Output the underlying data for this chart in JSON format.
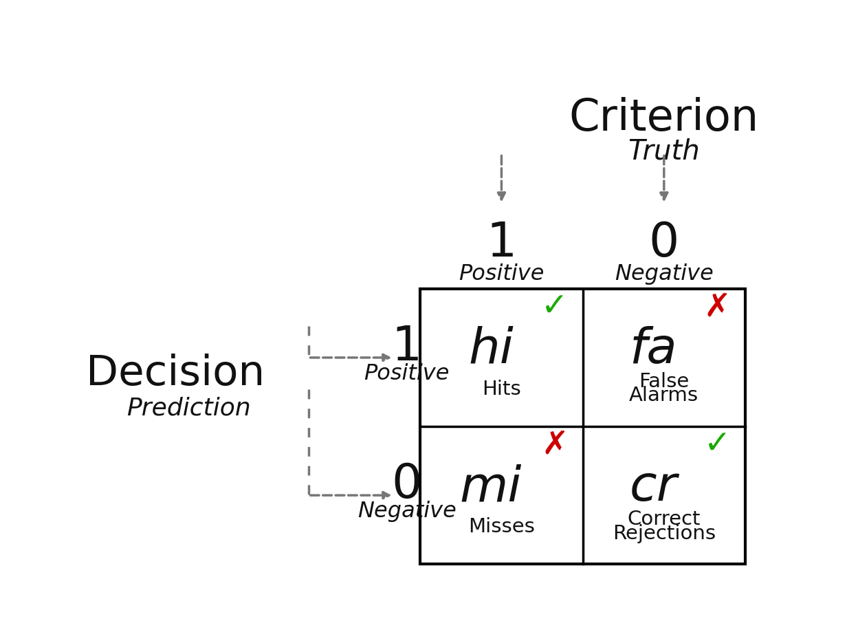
{
  "title": "Criterion",
  "subtitle_truth": "Truth",
  "col_label_1": "1",
  "col_label_0": "0",
  "col_sublabel_1": "Positive",
  "col_sublabel_0": "Negative",
  "row_label_decision": "Decision",
  "row_label_prediction": "Prediction",
  "row_label_1": "1",
  "row_label_0": "0",
  "row_sublabel_1": "Positive",
  "row_sublabel_0": "Negative",
  "cell_TL_abbr": "hi",
  "cell_TL_name": "Hits",
  "cell_TR_abbr": "fa",
  "cell_TR_name1": "False",
  "cell_TR_name2": "Alarms",
  "cell_BL_abbr": "mi",
  "cell_BL_name": "Misses",
  "cell_BR_abbr": "cr",
  "cell_BR_name1": "Correct",
  "cell_BR_name2": "Rejections",
  "check_color": "#1aaa00",
  "cross_color": "#cc0000",
  "arrow_color": "#777777",
  "text_color": "#111111",
  "bg_color": "#ffffff",
  "title_fontsize": 46,
  "col_num_fontsize": 50,
  "col_sublabel_fontsize": 23,
  "decision_fontsize": 44,
  "prediction_fontsize": 26,
  "row_num_fontsize": 50,
  "row_sublabel_fontsize": 23,
  "cell_abbr_fontsize": 52,
  "cell_name_fontsize": 21,
  "symbol_fontsize": 34
}
